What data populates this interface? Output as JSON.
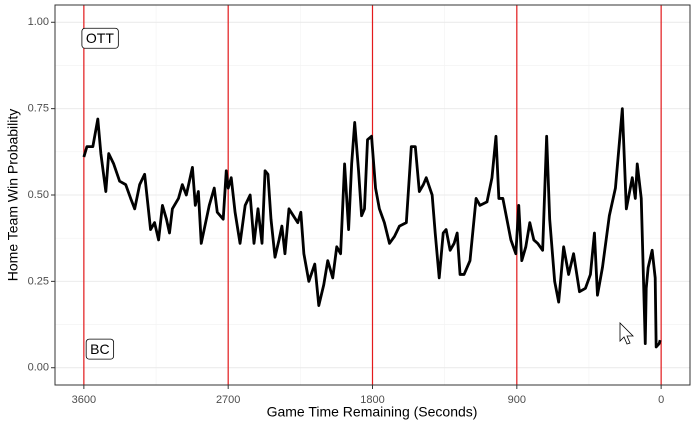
{
  "chart_data": {
    "type": "line",
    "xlabel": "Game Time Remaining (Seconds)",
    "ylabel": "Home Team Win Probability",
    "xlim": [
      3780,
      -180
    ],
    "ylim": [
      -0.05,
      1.05
    ],
    "xticks": [
      3600,
      2700,
      1800,
      900,
      0
    ],
    "xminor": [
      3150,
      2250,
      1350,
      450
    ],
    "yticks": [
      {
        "value": 0,
        "label": "0.00"
      },
      {
        "value": 0.25,
        "label": "0.25"
      },
      {
        "value": 0.5,
        "label": "0.50"
      },
      {
        "value": 0.75,
        "label": "0.75"
      },
      {
        "value": 1,
        "label": "1.00"
      }
    ],
    "yminor": [
      0.125,
      0.375,
      0.625,
      0.875
    ],
    "grid": true,
    "vlines": [
      3600,
      2700,
      1800,
      900,
      0
    ],
    "vline_color": "#e41a1c",
    "annotations": [
      {
        "text": "OTT",
        "x": 3500,
        "y": 0.95
      },
      {
        "text": "BC",
        "x": 3500,
        "y": 0.05
      }
    ],
    "series": [
      {
        "color": "#000000",
        "x": [
          3600,
          3581,
          3544,
          3513,
          3494,
          3463,
          3445,
          3414,
          3377,
          3339,
          3308,
          3283,
          3252,
          3221,
          3184,
          3159,
          3134,
          3110,
          3085,
          3066,
          3048,
          3010,
          2986,
          2961,
          2923,
          2905,
          2886,
          2868,
          2818,
          2787,
          2768,
          2731,
          2712,
          2700,
          2681,
          2657,
          2626,
          2594,
          2563,
          2539,
          2514,
          2489,
          2470,
          2452,
          2433,
          2408,
          2383,
          2365,
          2346,
          2321,
          2266,
          2247,
          2228,
          2197,
          2160,
          2135,
          2104,
          2079,
          2048,
          2023,
          1999,
          1974,
          1949,
          1930,
          1911,
          1887,
          1868,
          1850,
          1831,
          1806,
          1781,
          1757,
          1726,
          1694,
          1663,
          1632,
          1589,
          1558,
          1533,
          1508,
          1483,
          1465,
          1428,
          1409,
          1384,
          1359,
          1341,
          1316,
          1291,
          1272,
          1254,
          1229,
          1192,
          1154,
          1130,
          1086,
          1055,
          1030,
          1012,
          987,
          937,
          906,
          888,
          869,
          844,
          819,
          794,
          770,
          739,
          714,
          695,
          664,
          639,
          608,
          577,
          546,
          509,
          472,
          441,
          416,
          397,
          366,
          323,
          285,
          242,
          217,
          180,
          161,
          149,
          124,
          99,
          93,
          81,
          56,
          37,
          31,
          12,
          6
        ],
        "values": [
          0.61,
          0.64,
          0.64,
          0.72,
          0.62,
          0.51,
          0.62,
          0.59,
          0.54,
          0.53,
          0.49,
          0.46,
          0.53,
          0.56,
          0.4,
          0.42,
          0.37,
          0.47,
          0.43,
          0.39,
          0.46,
          0.49,
          0.53,
          0.5,
          0.58,
          0.47,
          0.51,
          0.36,
          0.47,
          0.52,
          0.45,
          0.43,
          0.57,
          0.52,
          0.55,
          0.45,
          0.36,
          0.47,
          0.5,
          0.36,
          0.46,
          0.36,
          0.57,
          0.56,
          0.43,
          0.32,
          0.37,
          0.41,
          0.33,
          0.46,
          0.42,
          0.45,
          0.33,
          0.25,
          0.3,
          0.18,
          0.24,
          0.31,
          0.26,
          0.35,
          0.33,
          0.59,
          0.4,
          0.59,
          0.71,
          0.57,
          0.44,
          0.46,
          0.66,
          0.67,
          0.52,
          0.46,
          0.42,
          0.36,
          0.38,
          0.41,
          0.42,
          0.64,
          0.64,
          0.51,
          0.53,
          0.55,
          0.5,
          0.39,
          0.26,
          0.39,
          0.4,
          0.34,
          0.36,
          0.39,
          0.27,
          0.27,
          0.31,
          0.49,
          0.47,
          0.48,
          0.55,
          0.67,
          0.49,
          0.49,
          0.37,
          0.33,
          0.47,
          0.31,
          0.35,
          0.42,
          0.37,
          0.36,
          0.34,
          0.67,
          0.43,
          0.25,
          0.19,
          0.35,
          0.27,
          0.33,
          0.22,
          0.23,
          0.27,
          0.39,
          0.21,
          0.29,
          0.44,
          0.52,
          0.75,
          0.46,
          0.55,
          0.49,
          0.59,
          0.49,
          0.07,
          0.23,
          0.29,
          0.34,
          0.26,
          0.06,
          0.07,
          0.08
        ]
      }
    ]
  }
}
